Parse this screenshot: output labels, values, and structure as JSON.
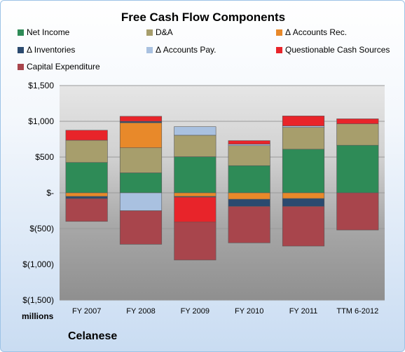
{
  "chart_data": {
    "type": "bar",
    "stacked": true,
    "title": "Free Cash Flow Components",
    "ylabel": "millions",
    "ylim": [
      -1500,
      1500
    ],
    "y_ticks": [
      "$1,500",
      "$1,000",
      "$500",
      "$-",
      "$(500)",
      "$(1,000)",
      "$(1,500)"
    ],
    "y_tick_values": [
      1500,
      1000,
      500,
      0,
      -500,
      -1000,
      -1500
    ],
    "categories": [
      "FY 2007",
      "FY 2008",
      "FY 2009",
      "FY 2010",
      "FY 2011",
      "TTM 6-2012"
    ],
    "legend_position": "top",
    "grid": true,
    "series": [
      {
        "name": "Net Income",
        "color": "#2e8b57",
        "values": [
          425,
          280,
          505,
          380,
          610,
          665
        ]
      },
      {
        "name": "D&A",
        "color": "#a79e6c",
        "values": [
          310,
          350,
          300,
          280,
          305,
          300
        ]
      },
      {
        "name": "Δ Accounts Rec.",
        "color": "#e8892a",
        "values": [
          -50,
          350,
          -50,
          -90,
          -80,
          0
        ]
      },
      {
        "name": "Δ Inventories",
        "color": "#2b4a6f",
        "values": [
          -30,
          20,
          -10,
          -100,
          -110,
          0
        ]
      },
      {
        "name": "Δ Accounts Pay.",
        "color": "#a9c1e0",
        "values": [
          0,
          -250,
          120,
          20,
          20,
          0
        ]
      },
      {
        "name": "Questionable Cash Sources",
        "color": "#e8242a",
        "values": [
          140,
          70,
          -350,
          50,
          140,
          70
        ]
      },
      {
        "name": "Capital Expenditure",
        "color": "#a8454c",
        "values": [
          -320,
          -470,
          -530,
          -510,
          -555,
          -520
        ]
      }
    ]
  },
  "footer": {
    "units": "millions",
    "company": "Celanese"
  }
}
